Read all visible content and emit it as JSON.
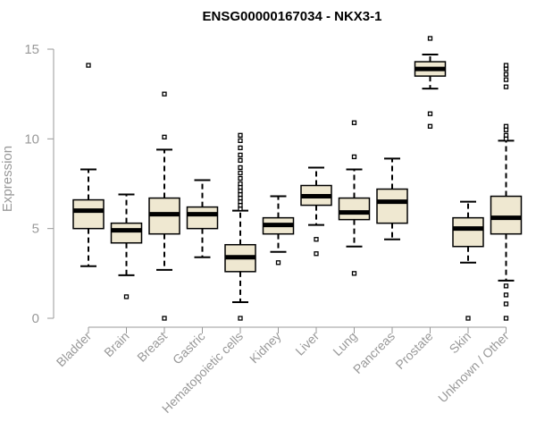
{
  "chart_data": {
    "type": "boxplot",
    "title": "ENSG00000167034 - NKX3-1",
    "xlabel": "",
    "ylabel": "Expression",
    "ylim": [
      0,
      15
    ],
    "yticks": [
      0,
      5,
      10,
      15
    ],
    "grid": false,
    "box_fill": "#efe8d1",
    "outline_color": "#000000",
    "axis_color": "#999999",
    "categories": [
      "Bladder",
      "Brain",
      "Breast",
      "Gastric",
      "Hematopoietic cells",
      "Kidney",
      "Liver",
      "Lung",
      "Pancreas",
      "Prostate",
      "Skin",
      "Unknown / Other"
    ],
    "boxes": [
      {
        "category": "Bladder",
        "whisker_low": 2.9,
        "q1": 5.0,
        "median": 6.0,
        "q3": 6.6,
        "whisker_high": 8.3,
        "outliers": [
          14.1
        ]
      },
      {
        "category": "Brain",
        "whisker_low": 2.4,
        "q1": 4.2,
        "median": 4.9,
        "q3": 5.3,
        "whisker_high": 6.9,
        "outliers": [
          1.2
        ]
      },
      {
        "category": "Breast",
        "whisker_low": 2.7,
        "q1": 4.7,
        "median": 5.8,
        "q3": 6.7,
        "whisker_high": 9.4,
        "outliers": [
          0.0,
          10.1,
          12.5
        ]
      },
      {
        "category": "Gastric",
        "whisker_low": 3.4,
        "q1": 5.0,
        "median": 5.8,
        "q3": 6.2,
        "whisker_high": 7.7,
        "outliers": []
      },
      {
        "category": "Hematopoietic cells",
        "whisker_low": 0.9,
        "q1": 2.6,
        "median": 3.4,
        "q3": 4.1,
        "whisker_high": 6.0,
        "outliers": [
          0.0,
          6.1,
          6.3,
          6.5,
          6.7,
          6.9,
          7.1,
          7.3,
          7.5,
          7.8,
          8.1,
          8.4,
          8.8,
          9.1,
          9.5,
          9.9,
          10.2
        ]
      },
      {
        "category": "Kidney",
        "whisker_low": 3.7,
        "q1": 4.7,
        "median": 5.2,
        "q3": 5.6,
        "whisker_high": 6.8,
        "outliers": [
          3.1
        ]
      },
      {
        "category": "Liver",
        "whisker_low": 5.2,
        "q1": 6.3,
        "median": 6.8,
        "q3": 7.4,
        "whisker_high": 8.4,
        "outliers": [
          3.6,
          4.4
        ]
      },
      {
        "category": "Lung",
        "whisker_low": 4.0,
        "q1": 5.5,
        "median": 5.9,
        "q3": 6.7,
        "whisker_high": 8.3,
        "outliers": [
          2.5,
          9.0,
          10.9
        ]
      },
      {
        "category": "Pancreas",
        "whisker_low": 4.4,
        "q1": 5.3,
        "median": 6.5,
        "q3": 7.2,
        "whisker_high": 8.9,
        "outliers": []
      },
      {
        "category": "Prostate",
        "whisker_low": 12.8,
        "q1": 13.5,
        "median": 13.9,
        "q3": 14.3,
        "whisker_high": 14.7,
        "outliers": [
          10.7,
          11.4,
          15.6
        ]
      },
      {
        "category": "Skin",
        "whisker_low": 3.1,
        "q1": 4.0,
        "median": 5.0,
        "q3": 5.6,
        "whisker_high": 6.5,
        "outliers": [
          0.0
        ]
      },
      {
        "category": "Unknown / Other",
        "whisker_low": 2.1,
        "q1": 4.7,
        "median": 5.6,
        "q3": 6.8,
        "whisker_high": 9.9,
        "outliers": [
          0.0,
          0.8,
          1.3,
          1.8,
          10.0,
          10.2,
          10.5,
          10.7,
          12.9,
          13.3,
          13.6,
          13.9,
          14.1
        ]
      }
    ]
  }
}
